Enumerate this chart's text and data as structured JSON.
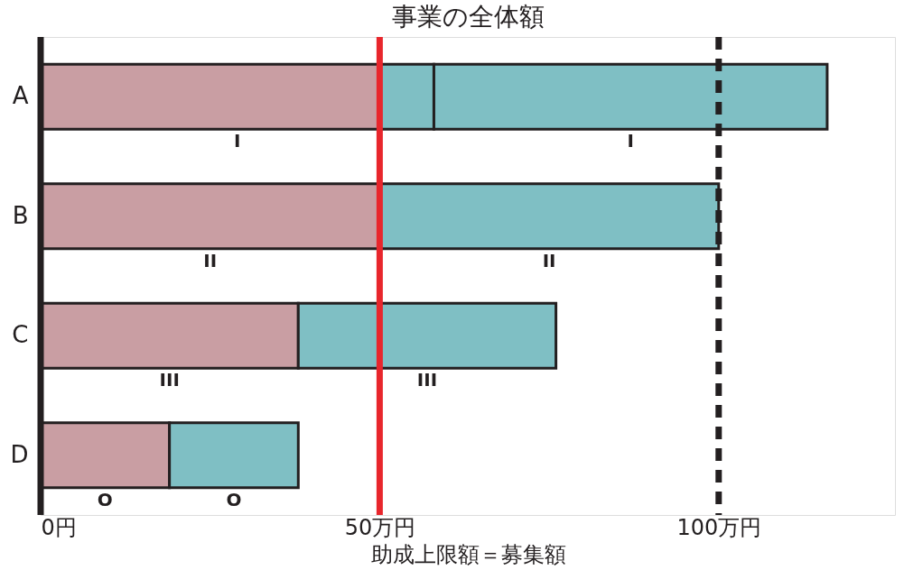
{
  "chart_data": {
    "type": "bar",
    "orientation": "horizontal",
    "stacked": true,
    "title": "事業の全体額",
    "xlabel": "助成上限額＝募集額",
    "categories": [
      "A",
      "B",
      "C",
      "D"
    ],
    "series": [
      {
        "color": "#c99ea3",
        "values": [
          50,
          50,
          38,
          19
        ]
      },
      {
        "color": "#7fbfc4",
        "values": [
          8,
          50,
          38,
          19
        ]
      },
      {
        "color": "#7fbfc4",
        "values": [
          58,
          null,
          null,
          null
        ]
      }
    ],
    "xlim": [
      0,
      126
    ],
    "xticks": [
      {
        "value": 0,
        "label": "0円"
      },
      {
        "value": 50,
        "label": "50万円"
      },
      {
        "value": 100,
        "label": "100万円"
      }
    ],
    "ref_lines": [
      {
        "axis": "x",
        "value": 50,
        "label": null,
        "color": "#e8262c",
        "line_style": "solid"
      },
      {
        "axis": "x",
        "value": 100,
        "label": null,
        "color": "#231f20",
        "line_style": "dashed"
      }
    ],
    "annotations": [
      "I",
      "I",
      "II",
      "II",
      "III",
      "III",
      "O",
      "O"
    ],
    "grid": false
  }
}
